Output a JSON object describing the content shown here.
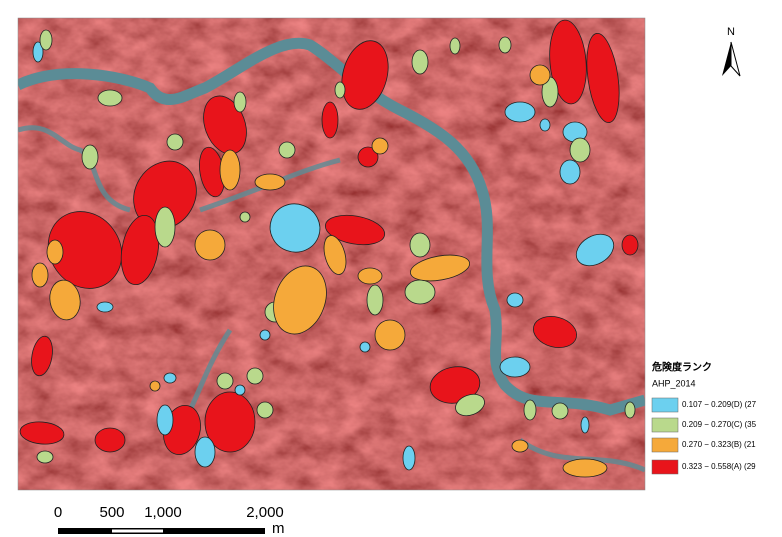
{
  "north_label": "N",
  "legend": {
    "title": "危険度ランク",
    "subtitle": "AHP_2014",
    "items": [
      {
        "label": "0.107 − 0.209(D) (27",
        "color": "#6cd0ef"
      },
      {
        "label": "0.209 − 0.270(C) (35",
        "color": "#b9d98c"
      },
      {
        "label": "0.270 − 0.323(B) (21",
        "color": "#f5a93a"
      },
      {
        "label": "0.323 − 0.558(A) (29",
        "color": "#e8141b"
      }
    ]
  },
  "scale_bar": {
    "labels": [
      "0",
      "500",
      "1,000",
      "2,000"
    ],
    "unit": "m"
  }
}
